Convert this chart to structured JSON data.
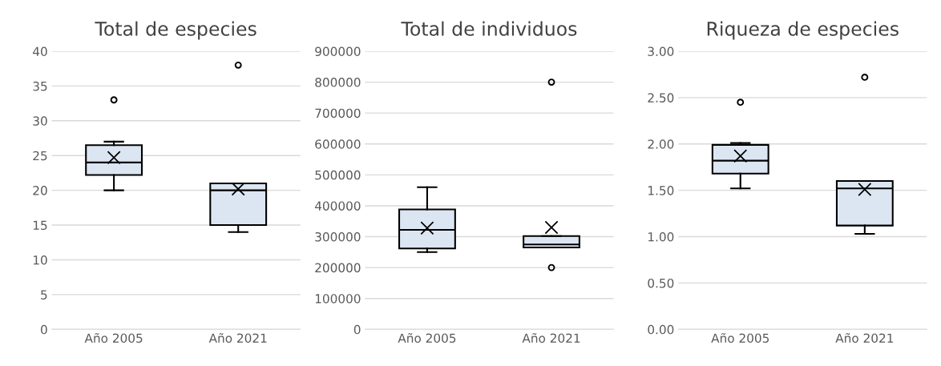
{
  "chart_data": [
    {
      "type": "box",
      "title": "Total de especies",
      "categories": [
        "Año 2005",
        "Año 2021"
      ],
      "color": "#dce6f2",
      "ylim": [
        0,
        40
      ],
      "yticks": [
        0,
        5,
        10,
        15,
        20,
        25,
        30,
        35,
        40
      ],
      "grid": "y",
      "marker": "cross",
      "boxes": [
        {
          "low": 20,
          "q1": 22.2,
          "median": 24,
          "q3": 26.5,
          "high": 27,
          "mean": 24.7,
          "outliers": [
            33
          ]
        },
        {
          "low": 14,
          "q1": 15,
          "median": 20,
          "q3": 21,
          "high": 21,
          "mean": 20.2,
          "outliers": [
            38
          ]
        }
      ]
    },
    {
      "type": "box",
      "title": "Total de individuos",
      "categories": [
        "Año 2005",
        "Año 2021"
      ],
      "color": "#dce6f2",
      "ylim": [
        0,
        900000
      ],
      "yticks": [
        0,
        100000,
        200000,
        300000,
        400000,
        500000,
        600000,
        700000,
        800000,
        900000
      ],
      "grid": "y",
      "marker": "cross",
      "boxes": [
        {
          "low": 250000,
          "q1": 262000,
          "median": 322000,
          "q3": 388000,
          "high": 460000,
          "mean": 328000
        },
        {
          "low": 265000,
          "q1": 265000,
          "median": 275000,
          "q3": 302000,
          "high": 302000,
          "mean": 330000,
          "outliers": [
            200000,
            800000
          ]
        }
      ]
    },
    {
      "type": "box",
      "title": "Riqueza de especies",
      "categories": [
        "Año 2005",
        "Año 2021"
      ],
      "color": "#dce6f2",
      "ylim": [
        0,
        3
      ],
      "yticks": [
        {
          "value": 0,
          "label": "0.00"
        },
        {
          "value": 0.5,
          "label": "0.50"
        },
        {
          "value": 1,
          "label": "1.00"
        },
        {
          "value": 1.5,
          "label": "1.50"
        },
        {
          "value": 2,
          "label": "2.00"
        },
        {
          "value": 2.5,
          "label": "2.50"
        },
        {
          "value": 3,
          "label": "3.00"
        }
      ],
      "grid": "y",
      "marker": "cross",
      "boxes": [
        {
          "low": 1.52,
          "q1": 1.68,
          "median": 1.82,
          "q3": 1.99,
          "high": 2.01,
          "mean": 1.87,
          "outliers": [
            2.45
          ]
        },
        {
          "low": 1.03,
          "q1": 1.12,
          "median": 1.52,
          "q3": 1.6,
          "high": 1.6,
          "mean": 1.51,
          "outliers": [
            2.72
          ]
        }
      ]
    }
  ]
}
